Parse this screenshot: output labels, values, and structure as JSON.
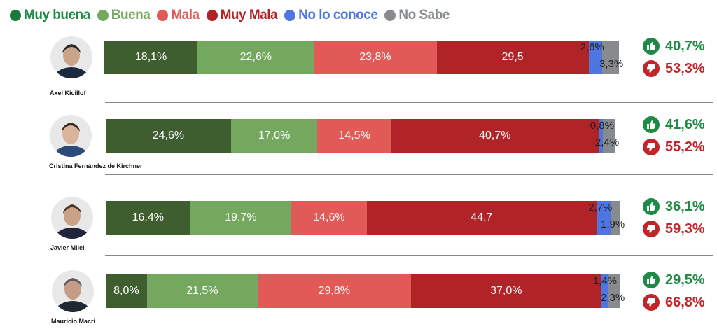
{
  "colors": {
    "muy_buena": "#3f5e2f",
    "buena": "#74a85e",
    "mala": "#e25a57",
    "muy_mala": "#b02326",
    "no_lo_conoce": "#4f75e0",
    "no_sabe": "#878b8e",
    "positive": "#1f8a45",
    "negative": "#c0252a"
  },
  "legend": [
    {
      "label": "Muy buena",
      "color": "#1a7a3a",
      "text_color": "#1f8a45"
    },
    {
      "label": "Buena",
      "color": "#74a85e",
      "text_color": "#74a85e"
    },
    {
      "label": "Mala",
      "color": "#e25a57",
      "text_color": "#e25a57"
    },
    {
      "label": "Muy Mala",
      "color": "#b02326",
      "text_color": "#b02326"
    },
    {
      "label": "No lo conoce",
      "color": "#4f75e0",
      "text_color": "#4f75e0"
    },
    {
      "label": "No Sabe",
      "color": "#878b8e",
      "text_color": "#878b8e"
    }
  ],
  "chart_data": {
    "type": "bar",
    "orientation": "horizontal",
    "stacked": true,
    "categories": [
      "Axel Kicillof",
      "Cristina Fernández de Kirchner",
      "Javier Milei",
      "Mauricio Macri"
    ],
    "series": [
      {
        "name": "Muy buena",
        "values": [
          18.1,
          24.6,
          16.4,
          8.0
        ],
        "labels": [
          "18,1%",
          "24,6%",
          "16,4%",
          "8,0%"
        ]
      },
      {
        "name": "Buena",
        "values": [
          22.6,
          17.0,
          19.7,
          21.5
        ],
        "labels": [
          "22,6%",
          "17,0%",
          "19,7%",
          "21,5%"
        ]
      },
      {
        "name": "Mala",
        "values": [
          23.8,
          14.5,
          14.6,
          29.8
        ],
        "labels": [
          "23,8%",
          "14,5%",
          "14,6%",
          "29,8%"
        ]
      },
      {
        "name": "Muy Mala",
        "values": [
          29.5,
          40.7,
          44.7,
          37.0
        ],
        "labels": [
          "29,5",
          "40,7%",
          "44,7",
          "37,0%"
        ]
      },
      {
        "name": "No lo conoce",
        "values": [
          2.6,
          0.8,
          2.7,
          1.4
        ],
        "labels": [
          "2,6%",
          "0,8%",
          "2,7%",
          "1,4%"
        ]
      },
      {
        "name": "No Sabe",
        "values": [
          3.3,
          2.4,
          1.9,
          2.3
        ],
        "labels": [
          "3,3%",
          "2,4%",
          "1,9%",
          "2,3%"
        ]
      }
    ],
    "positive": [
      "40,7%",
      "41,6%",
      "36,1%",
      "29,5%"
    ],
    "negative": [
      "53,3%",
      "55,2%",
      "59,3%",
      "66,8%"
    ]
  }
}
